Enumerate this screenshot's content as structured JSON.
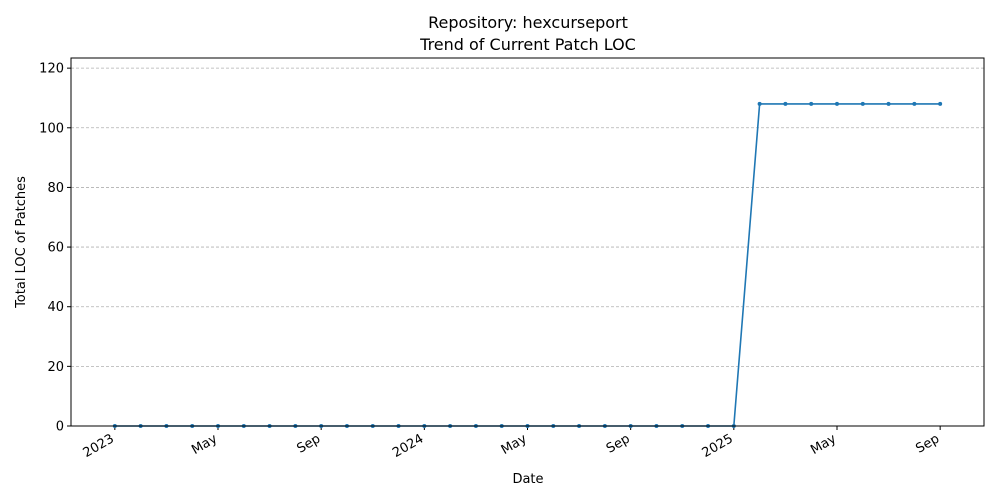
{
  "chart_data": {
    "type": "line",
    "title_line1": "Repository: hexcurseport",
    "title_line2": "Trend of Current Patch LOC",
    "xlabel": "Date",
    "ylabel": "Total LOC of Patches",
    "ylim": [
      0,
      123.4
    ],
    "yticks": [
      0,
      20,
      40,
      60,
      80,
      100,
      120
    ],
    "xlim": [
      -1.7,
      33.7
    ],
    "xticks": [
      {
        "label": "2023",
        "index": 0
      },
      {
        "label": "May",
        "index": 4
      },
      {
        "label": "Sep",
        "index": 8
      },
      {
        "label": "2024",
        "index": 12
      },
      {
        "label": "May",
        "index": 16
      },
      {
        "label": "Sep",
        "index": 20
      },
      {
        "label": "2025",
        "index": 24
      },
      {
        "label": "May",
        "index": 28
      },
      {
        "label": "Sep",
        "index": 32
      }
    ],
    "grid": "y",
    "color": "#1f77b4",
    "series": [
      {
        "name": "Total LOC of Patches",
        "x": [
          "2023-01",
          "2023-02",
          "2023-03",
          "2023-04",
          "2023-05",
          "2023-06",
          "2023-07",
          "2023-08",
          "2023-09",
          "2023-10",
          "2023-11",
          "2023-12",
          "2024-01",
          "2024-02",
          "2024-03",
          "2024-04",
          "2024-05",
          "2024-06",
          "2024-07",
          "2024-08",
          "2024-09",
          "2024-10",
          "2024-11",
          "2024-12",
          "2025-01",
          "2025-02",
          "2025-03",
          "2025-04",
          "2025-05",
          "2025-06",
          "2025-07",
          "2025-08",
          "2025-09"
        ],
        "values": [
          0,
          0,
          0,
          0,
          0,
          0,
          0,
          0,
          0,
          0,
          0,
          0,
          0,
          0,
          0,
          0,
          0,
          0,
          0,
          0,
          0,
          0,
          0,
          0,
          0,
          108,
          108,
          108,
          108,
          108,
          108,
          108,
          108
        ]
      }
    ]
  }
}
